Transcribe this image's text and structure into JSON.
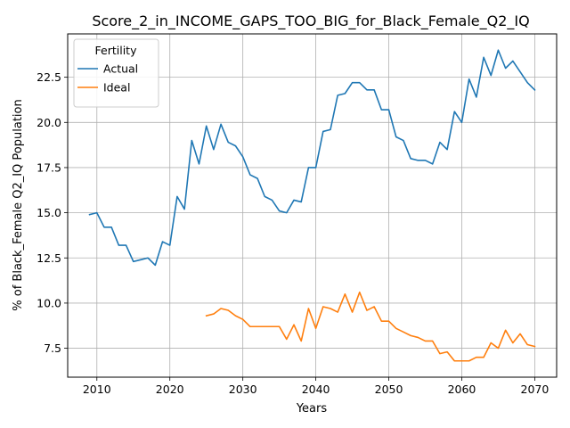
{
  "chart_data": {
    "type": "line",
    "title": "Score_2_in_INCOME_GAPS_TOO_BIG_for_Black_Female_Q2_IQ",
    "xlabel": "Years",
    "ylabel": "% of Black_Female Q2_IQ Population",
    "xlim": [
      2006,
      2073
    ],
    "ylim": [
      5.9,
      24.9
    ],
    "xticks": [
      2010,
      2020,
      2030,
      2040,
      2050,
      2060,
      2070
    ],
    "xtick_labels": [
      "2010",
      "2020",
      "2030",
      "2040",
      "2050",
      "2060",
      "2070"
    ],
    "yticks": [
      7.5,
      10.0,
      12.5,
      15.0,
      17.5,
      20.0,
      22.5
    ],
    "ytick_labels": [
      "7.5",
      "10.0",
      "12.5",
      "15.0",
      "17.5",
      "20.0",
      "22.5"
    ],
    "grid": true,
    "legend": {
      "title": "Fertility",
      "placement": "top-left"
    },
    "series": [
      {
        "name": "Actual",
        "color": "#1f77b4",
        "x": [
          2009,
          2010,
          2011,
          2012,
          2013,
          2014,
          2015,
          2016,
          2017,
          2018,
          2019,
          2020,
          2021,
          2022,
          2023,
          2024,
          2025,
          2026,
          2027,
          2028,
          2029,
          2030,
          2031,
          2032,
          2033,
          2034,
          2035,
          2036,
          2037,
          2038,
          2039,
          2040,
          2041,
          2042,
          2043,
          2044,
          2045,
          2046,
          2047,
          2048,
          2049,
          2050,
          2051,
          2052,
          2053,
          2054,
          2055,
          2056,
          2057,
          2058,
          2059,
          2060,
          2061,
          2062,
          2063,
          2064,
          2065,
          2066,
          2067,
          2068,
          2069,
          2070
        ],
        "values": [
          14.9,
          15.0,
          14.2,
          14.2,
          13.2,
          13.2,
          12.3,
          12.4,
          12.5,
          12.1,
          13.4,
          13.2,
          15.9,
          15.2,
          19.0,
          17.7,
          19.8,
          18.5,
          19.9,
          18.9,
          18.7,
          18.1,
          17.1,
          16.9,
          15.9,
          15.7,
          15.1,
          15.0,
          15.7,
          15.6,
          17.5,
          17.5,
          19.5,
          19.6,
          21.5,
          21.6,
          22.2,
          22.2,
          21.8,
          21.8,
          20.7,
          20.7,
          19.2,
          19.0,
          18.0,
          17.9,
          17.9,
          17.7,
          18.9,
          18.5,
          20.6,
          20.0,
          22.4,
          21.4,
          23.6,
          22.6,
          24.0,
          23.0,
          23.4,
          22.8,
          22.2,
          21.8
        ]
      },
      {
        "name": "Ideal",
        "color": "#ff7f0e",
        "x": [
          2025,
          2026,
          2027,
          2028,
          2029,
          2030,
          2031,
          2032,
          2033,
          2034,
          2035,
          2036,
          2037,
          2038,
          2039,
          2040,
          2041,
          2042,
          2043,
          2044,
          2045,
          2046,
          2047,
          2048,
          2049,
          2050,
          2051,
          2052,
          2053,
          2054,
          2055,
          2056,
          2057,
          2058,
          2059,
          2060,
          2061,
          2062,
          2063,
          2064,
          2065,
          2066,
          2067,
          2068,
          2069,
          2070
        ],
        "values": [
          9.3,
          9.4,
          9.7,
          9.6,
          9.3,
          9.1,
          8.7,
          8.7,
          8.7,
          8.7,
          8.7,
          8.0,
          8.8,
          7.9,
          9.7,
          8.6,
          9.8,
          9.7,
          9.5,
          10.5,
          9.5,
          10.6,
          9.6,
          9.8,
          9.0,
          9.0,
          8.6,
          8.4,
          8.2,
          8.1,
          7.9,
          7.9,
          7.2,
          7.3,
          6.8,
          6.8,
          6.8,
          7.0,
          7.0,
          7.8,
          7.5,
          8.5,
          7.8,
          8.3,
          7.7,
          7.6
        ]
      }
    ]
  }
}
